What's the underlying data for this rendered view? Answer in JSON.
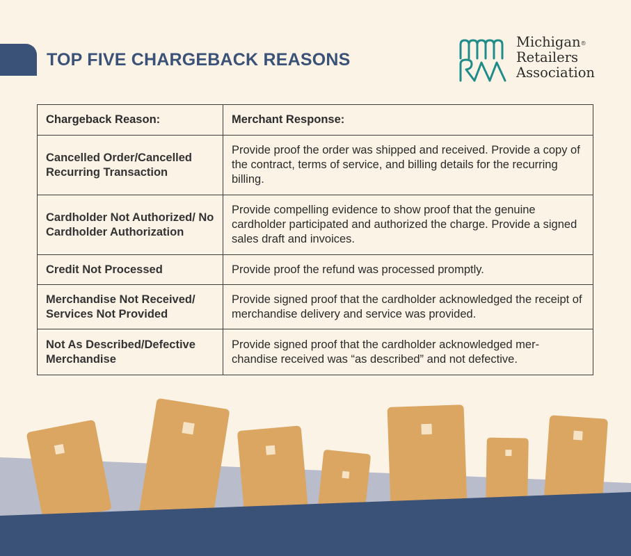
{
  "header": {
    "title": "TOP FIVE CHARGEBACK REASONS"
  },
  "logo": {
    "line1": "Michigan",
    "registered": "®",
    "line2": "Retailers",
    "line3": "Association"
  },
  "table": {
    "headers": [
      "Chargeback Reason:",
      "Merchant Response:"
    ],
    "rows": [
      {
        "reason": "Cancelled Order/Cancelled Recurring Transaction",
        "response": "Provide proof the order was shipped and received. Provide a copy of the contract, terms of service, and billing details for the recurring billing."
      },
      {
        "reason": "Cardholder Not Authorized/ No Cardholder Authorization",
        "response": "Provide compelling evidence to show proof that the genuine cardholder participated and authorized the charge. Provide a signed sales draft and invoices."
      },
      {
        "reason": "Credit Not Processed",
        "response": "Provide proof the refund was processed promptly."
      },
      {
        "reason": "Merchandise Not Received/ Services Not Provided",
        "response": "Provide signed proof that the cardholder acknowledged the receipt of merchandise delivery and service was provided."
      },
      {
        "reason": "Not As Described/Defective Merchandise",
        "response": "Provide signed proof that the cardholder acknowledged mer-chandise received was “as described” and not defective."
      }
    ]
  },
  "colors": {
    "background": "#fbf3e6",
    "navy": "#3a5278",
    "teal": "#1f8c8a",
    "card": "#dba562",
    "chip": "#f6e2c4",
    "hill": "#b9bccb"
  }
}
